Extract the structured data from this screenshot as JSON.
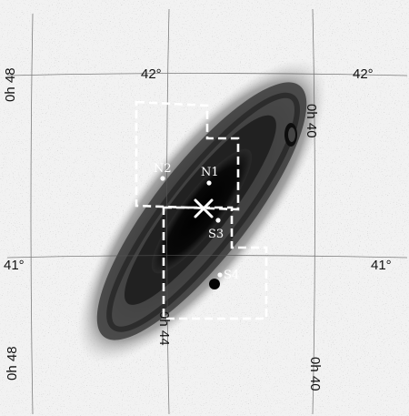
{
  "image": {
    "labels": {
      "field_n1": "N1",
      "field_n2": "N2",
      "field_s3": "S3",
      "field_s4": "S4"
    },
    "grid_labels": {
      "dec_42_top": "42°",
      "dec_42_right": "42°",
      "dec_41_left": "41°",
      "dec_41_right": "41°",
      "ra_0h48_top": "0h 48",
      "ra_0h40_top": "0h 40",
      "ra_0h44_mid": "0h 44",
      "ra_0h48_bottom": "0h 48",
      "ra_0h40_bottom": "0h 40"
    },
    "colors": {
      "background": "#f4f4f4",
      "galaxy_core": "#050505",
      "overlay": "#ffffff",
      "grid": "#555555"
    },
    "marker": "center-cross"
  }
}
